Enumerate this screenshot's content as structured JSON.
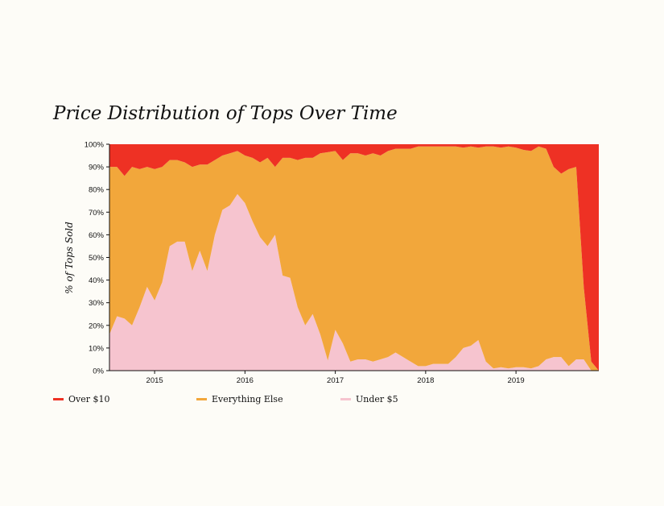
{
  "chart_data": {
    "type": "area",
    "stacked": true,
    "normalized": true,
    "title": "Price Distribution of Tops Over Time",
    "xlabel": "",
    "ylabel": "% of Tops Sold",
    "xlim": [
      "2014-07",
      "2019-12"
    ],
    "ylim": [
      0,
      100
    ],
    "x_ticks": [
      "2015",
      "2016",
      "2017",
      "2018",
      "2019"
    ],
    "y_ticks": [
      "0%",
      "10%",
      "20%",
      "30%",
      "40%",
      "50%",
      "60%",
      "70%",
      "80%",
      "90%",
      "100%"
    ],
    "legend_position": "bottom",
    "grid": false,
    "x": [
      "2014-07",
      "2014-08",
      "2014-09",
      "2014-10",
      "2014-11",
      "2014-12",
      "2015-01",
      "2015-02",
      "2015-03",
      "2015-04",
      "2015-05",
      "2015-06",
      "2015-07",
      "2015-08",
      "2015-09",
      "2015-10",
      "2015-11",
      "2015-12",
      "2016-01",
      "2016-02",
      "2016-03",
      "2016-04",
      "2016-05",
      "2016-06",
      "2016-07",
      "2016-08",
      "2016-09",
      "2016-10",
      "2016-11",
      "2016-12",
      "2017-01",
      "2017-02",
      "2017-03",
      "2017-04",
      "2017-05",
      "2017-06",
      "2017-07",
      "2017-08",
      "2017-09",
      "2017-10",
      "2017-11",
      "2017-12",
      "2018-01",
      "2018-02",
      "2018-03",
      "2018-04",
      "2018-05",
      "2018-06",
      "2018-07",
      "2018-08",
      "2018-09",
      "2018-10",
      "2018-11",
      "2018-12",
      "2019-01",
      "2019-02",
      "2019-03",
      "2019-04",
      "2019-05",
      "2019-06",
      "2019-07",
      "2019-08",
      "2019-09",
      "2019-10",
      "2019-11",
      "2019-12"
    ],
    "series": [
      {
        "name": "Over $10",
        "color": "#ee3124",
        "values": [
          10,
          10,
          14,
          10,
          11,
          10,
          11,
          10,
          7,
          7,
          8,
          10,
          9,
          9,
          7,
          5,
          4,
          3,
          5,
          6,
          8,
          6,
          10,
          6,
          6,
          7,
          6,
          6,
          4,
          3.5,
          3,
          7,
          4,
          4,
          5,
          4,
          5,
          3,
          2,
          2,
          2,
          1,
          1,
          1,
          1,
          1,
          1,
          1.5,
          1,
          1.5,
          1,
          1,
          1.5,
          1,
          1.5,
          2.5,
          3,
          1,
          2,
          10,
          13,
          11,
          10,
          63,
          96,
          100
        ]
      },
      {
        "name": "Everything Else",
        "color": "#f2a73b",
        "values": [
          74,
          66,
          63,
          70,
          61,
          53,
          58,
          51,
          38,
          36,
          35,
          46,
          38,
          47,
          33,
          24,
          23,
          19,
          21,
          28,
          33,
          39,
          30,
          52,
          53,
          65,
          74,
          69,
          80,
          92,
          79,
          81,
          92,
          91,
          90,
          92,
          90,
          91,
          90,
          92,
          94,
          97,
          97,
          96,
          96,
          96,
          93,
          88.5,
          88,
          85,
          95,
          98,
          97,
          98,
          97,
          96,
          96,
          97,
          93,
          84,
          81,
          87,
          85,
          32,
          4,
          0
        ]
      },
      {
        "name": "Under $5",
        "color": "#f6c4cf",
        "values": [
          16,
          24,
          23,
          20,
          28,
          37,
          31,
          39,
          55,
          57,
          57,
          44,
          53,
          44,
          60,
          71,
          73,
          78,
          74,
          66,
          59,
          55,
          60,
          42,
          41,
          28,
          20,
          25,
          16,
          4.5,
          18,
          12,
          4,
          5,
          5,
          4,
          5,
          6,
          8,
          6,
          4,
          2,
          2,
          3,
          3,
          3,
          6,
          10,
          11,
          13.5,
          4,
          1,
          1.5,
          1,
          1.5,
          1.5,
          1,
          2,
          5,
          6,
          6,
          2,
          5,
          5,
          0,
          0
        ]
      }
    ]
  }
}
